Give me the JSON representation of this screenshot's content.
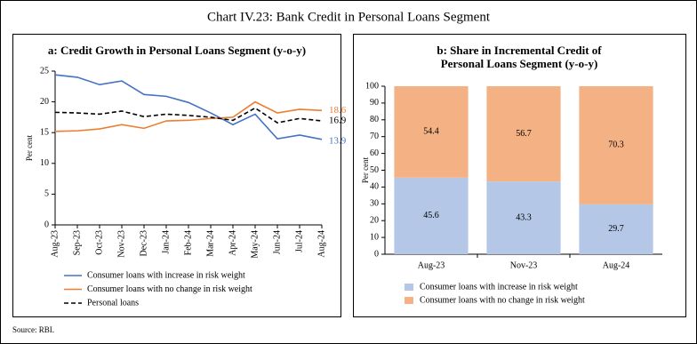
{
  "title": "Chart IV.23: Bank Credit in Personal Loans Segment",
  "source": "Source: RBI.",
  "chart_data": [
    {
      "type": "line",
      "title": [
        "a: Credit Growth in Personal Loans Segment (y-o-y)"
      ],
      "y_label": "Per cent",
      "categories": [
        "Aug-23",
        "Sep-23",
        "Oct-23",
        "Nov-23",
        "Dec-23",
        "Jan-24",
        "Feb-24",
        "Mar-24",
        "Apr-24",
        "May-24",
        "Jun-24",
        "Jul-24",
        "Aug-24"
      ],
      "series": [
        {
          "name": "Consumer loans with increase in risk weight",
          "color": "#4472c4",
          "style": "solid",
          "values": [
            24.4,
            24.0,
            22.8,
            23.4,
            21.2,
            20.9,
            19.9,
            18.2,
            16.3,
            18.0,
            14.0,
            14.6,
            13.9
          ]
        },
        {
          "name": "Consumer loans with no change in risk weight",
          "color": "#ed7d31",
          "style": "solid",
          "values": [
            15.2,
            15.3,
            15.6,
            16.3,
            15.7,
            16.9,
            17.0,
            17.3,
            17.5,
            20.0,
            18.2,
            18.8,
            18.6
          ]
        },
        {
          "name": "Personal loans",
          "color": "#000000",
          "style": "dashed",
          "values": [
            18.3,
            18.2,
            18.0,
            18.5,
            17.6,
            18.0,
            17.8,
            17.5,
            17.0,
            19.0,
            16.6,
            17.3,
            16.9
          ]
        }
      ],
      "ylim": [
        0,
        25
      ],
      "yticks": [
        0,
        5,
        10,
        15,
        20,
        25
      ]
    },
    {
      "type": "stacked_bar",
      "title": [
        "b: Share in Incremental Credit of",
        "Personal Loans Segment (y-o-y)"
      ],
      "y_label": "Per cent",
      "categories": [
        "Aug-23",
        "Nov-23",
        "Aug-24"
      ],
      "series": [
        {
          "name": "Consumer loans with increase in risk weight",
          "color": "#b4c7e7",
          "values": [
            45.6,
            43.3,
            29.7
          ]
        },
        {
          "name": "Consumer loans with no change in risk weight",
          "color": "#f4b183",
          "values": [
            54.4,
            56.7,
            70.3
          ]
        }
      ],
      "ylim": [
        0,
        100
      ],
      "yticks": [
        0,
        10,
        20,
        30,
        40,
        50,
        60,
        70,
        80,
        90,
        100
      ]
    }
  ]
}
